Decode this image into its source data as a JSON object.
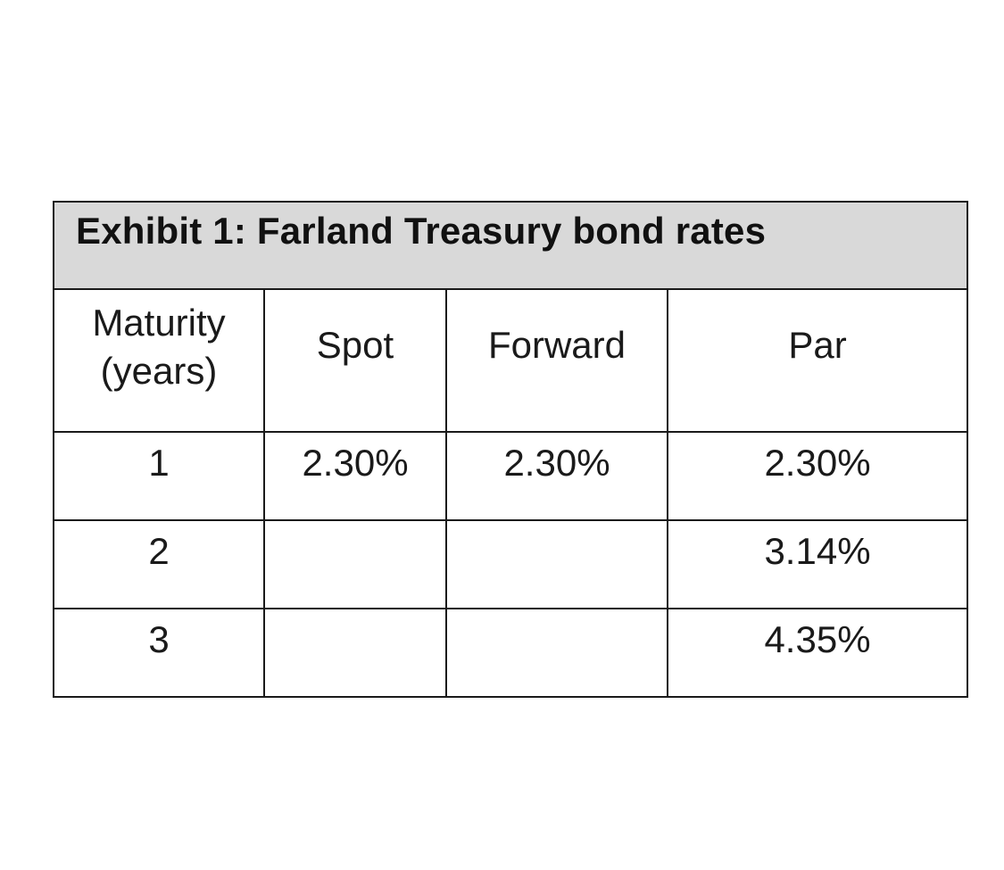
{
  "title": "Exhibit 1: Farland Treasury bond rates",
  "headers": {
    "maturity_line1": "Maturity",
    "maturity_line2": "(years)",
    "spot": "Spot",
    "forward": "Forward",
    "par": "Par"
  },
  "rows": [
    {
      "maturity": "1",
      "spot": "2.30%",
      "forward": "2.30%",
      "par": "2.30%"
    },
    {
      "maturity": "2",
      "spot": "",
      "forward": "",
      "par": "3.14%"
    },
    {
      "maturity": "3",
      "spot": "",
      "forward": "",
      "par": "4.35%"
    }
  ],
  "colors": {
    "title_background": "#d9d9d9",
    "border": "#1a1a1a"
  }
}
